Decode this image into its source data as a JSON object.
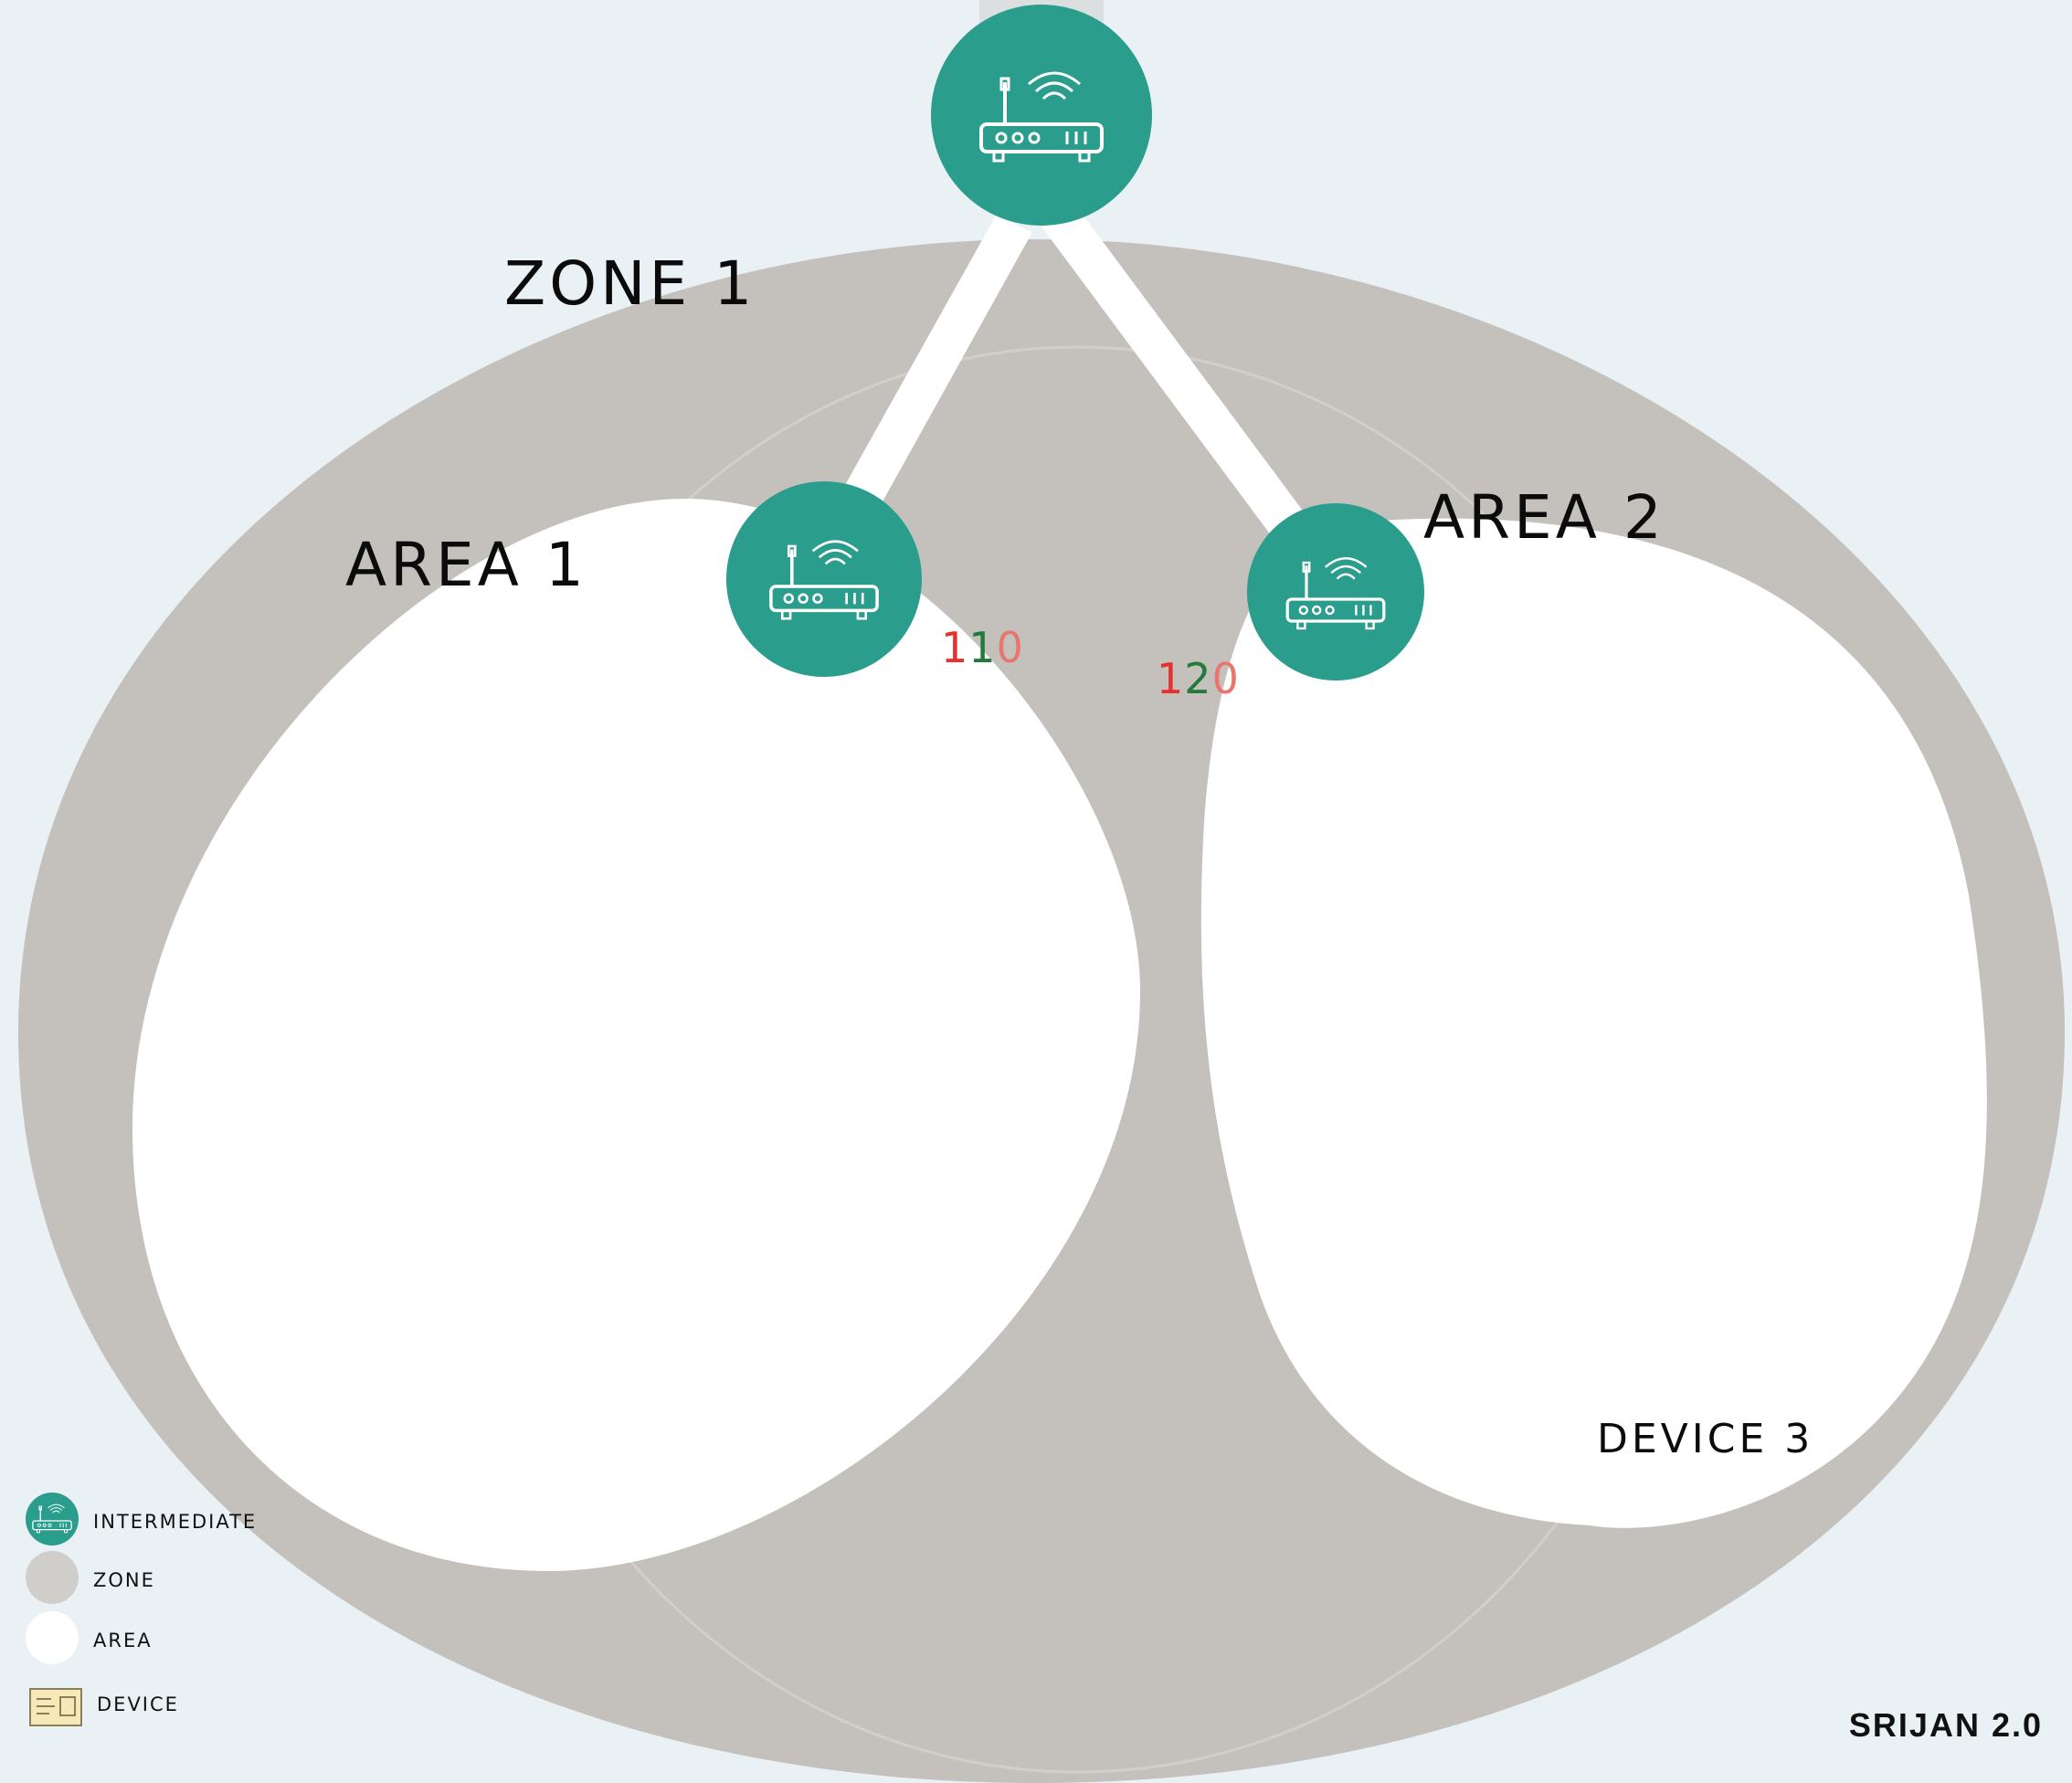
{
  "labels": {
    "zone": "ZONE 1",
    "area1": "AREA 1",
    "area2": "AREA 2",
    "device": "DEVICE  3"
  },
  "counts": {
    "area1": {
      "digits": [
        "1",
        "1",
        "0"
      ],
      "colors": [
        "#e5312f",
        "#247a3c",
        "#e8766e"
      ]
    },
    "area2": {
      "digits": [
        "1",
        "2",
        "0"
      ],
      "colors": [
        "#e5312f",
        "#247a3c",
        "#e8766e"
      ]
    }
  },
  "nodes": [
    {
      "name": "router-top",
      "type": "INTERMEDIATE",
      "icon": "router-icon"
    },
    {
      "name": "router-area1",
      "type": "INTERMEDIATE",
      "icon": "router-icon"
    },
    {
      "name": "router-area2",
      "type": "INTERMEDIATE",
      "icon": "router-icon"
    }
  ],
  "legend": {
    "intermediate": "INTERMEDIATE",
    "zone": "ZONE",
    "area": "AREA",
    "device": "DEVICE"
  },
  "colors": {
    "intermediate": "#2a9d8c",
    "zone": "#c4c1bc",
    "area": "#ffffff",
    "background": "#e9f1f5",
    "device": "#f5e9b8"
  },
  "brand": "SRIJAN 2.0"
}
